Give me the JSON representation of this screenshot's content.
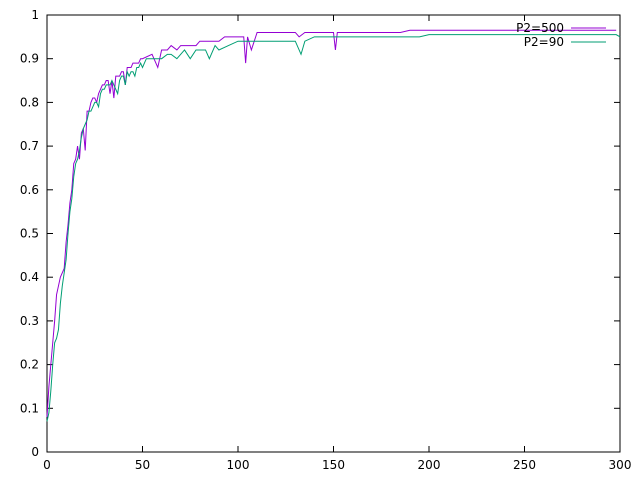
{
  "chart_data": {
    "type": "line",
    "title": "",
    "xlabel": "",
    "ylabel": "",
    "xlim": [
      0,
      300
    ],
    "ylim": [
      0,
      1
    ],
    "xticks": [
      0,
      50,
      100,
      150,
      200,
      250,
      300
    ],
    "yticks": [
      0,
      0.1,
      0.2,
      0.3,
      0.4,
      0.5,
      0.6,
      0.7,
      0.8,
      0.9,
      1
    ],
    "grid": false,
    "legend_position": "top-right",
    "series": [
      {
        "name": "P2=500",
        "color": "#9400d3",
        "x": [
          0,
          1,
          2,
          3,
          4,
          5,
          6,
          7,
          8,
          9,
          10,
          11,
          12,
          13,
          14,
          15,
          16,
          17,
          18,
          19,
          20,
          21,
          22,
          23,
          24,
          25,
          26,
          27,
          28,
          29,
          30,
          31,
          32,
          33,
          34,
          35,
          36,
          37,
          38,
          39,
          40,
          41,
          42,
          43,
          44,
          45,
          46,
          47,
          48,
          49,
          50,
          55,
          58,
          60,
          63,
          65,
          68,
          70,
          73,
          75,
          78,
          80,
          83,
          85,
          88,
          90,
          93,
          95,
          98,
          100,
          102,
          103,
          104,
          105,
          107,
          110,
          115,
          120,
          125,
          130,
          132,
          135,
          140,
          145,
          150,
          151,
          152,
          155,
          160,
          165,
          170,
          175,
          180,
          185,
          190,
          195,
          200,
          210,
          220,
          230,
          240,
          250,
          260,
          270,
          280,
          290,
          295,
          298
        ],
        "y": [
          0.08,
          0.15,
          0.2,
          0.25,
          0.3,
          0.36,
          0.38,
          0.4,
          0.41,
          0.42,
          0.48,
          0.52,
          0.57,
          0.6,
          0.66,
          0.67,
          0.7,
          0.67,
          0.73,
          0.74,
          0.69,
          0.78,
          0.78,
          0.8,
          0.81,
          0.81,
          0.8,
          0.82,
          0.83,
          0.84,
          0.84,
          0.85,
          0.85,
          0.82,
          0.85,
          0.81,
          0.86,
          0.86,
          0.86,
          0.87,
          0.87,
          0.84,
          0.88,
          0.88,
          0.88,
          0.89,
          0.89,
          0.89,
          0.89,
          0.9,
          0.9,
          0.91,
          0.88,
          0.92,
          0.92,
          0.93,
          0.92,
          0.93,
          0.93,
          0.93,
          0.93,
          0.94,
          0.94,
          0.94,
          0.94,
          0.94,
          0.95,
          0.95,
          0.95,
          0.95,
          0.95,
          0.95,
          0.89,
          0.95,
          0.92,
          0.96,
          0.96,
          0.96,
          0.96,
          0.96,
          0.95,
          0.96,
          0.96,
          0.96,
          0.96,
          0.92,
          0.96,
          0.96,
          0.96,
          0.96,
          0.96,
          0.96,
          0.96,
          0.96,
          0.965,
          0.965,
          0.965,
          0.965,
          0.965,
          0.965,
          0.965,
          0.965,
          0.965,
          0.965,
          0.965,
          0.965,
          0.965,
          0.965
        ]
      },
      {
        "name": "P2=90",
        "color": "#009e73",
        "x": [
          0,
          1,
          2,
          3,
          4,
          5,
          6,
          7,
          8,
          9,
          10,
          11,
          12,
          13,
          14,
          15,
          16,
          17,
          18,
          19,
          20,
          21,
          22,
          23,
          24,
          25,
          26,
          27,
          28,
          29,
          30,
          31,
          32,
          33,
          34,
          35,
          36,
          37,
          38,
          39,
          40,
          41,
          42,
          43,
          44,
          45,
          46,
          47,
          48,
          49,
          50,
          52,
          55,
          58,
          60,
          63,
          65,
          68,
          70,
          72,
          75,
          78,
          80,
          83,
          85,
          88,
          90,
          95,
          100,
          105,
          110,
          115,
          120,
          125,
          130,
          133,
          135,
          140,
          145,
          150,
          155,
          160,
          165,
          170,
          175,
          180,
          185,
          190,
          195,
          200,
          210,
          220,
          230,
          240,
          250,
          260,
          270,
          280,
          290,
          295,
          298,
          300
        ],
        "y": [
          0.07,
          0.09,
          0.14,
          0.2,
          0.25,
          0.26,
          0.28,
          0.34,
          0.38,
          0.41,
          0.44,
          0.5,
          0.55,
          0.58,
          0.63,
          0.66,
          0.67,
          0.69,
          0.72,
          0.74,
          0.75,
          0.76,
          0.78,
          0.78,
          0.79,
          0.8,
          0.8,
          0.79,
          0.82,
          0.83,
          0.83,
          0.84,
          0.84,
          0.84,
          0.85,
          0.84,
          0.83,
          0.82,
          0.85,
          0.86,
          0.86,
          0.84,
          0.87,
          0.86,
          0.87,
          0.87,
          0.86,
          0.88,
          0.88,
          0.89,
          0.88,
          0.9,
          0.9,
          0.9,
          0.9,
          0.91,
          0.91,
          0.9,
          0.91,
          0.92,
          0.9,
          0.92,
          0.92,
          0.92,
          0.9,
          0.93,
          0.92,
          0.93,
          0.94,
          0.94,
          0.94,
          0.94,
          0.94,
          0.94,
          0.94,
          0.91,
          0.94,
          0.95,
          0.95,
          0.95,
          0.95,
          0.95,
          0.95,
          0.95,
          0.95,
          0.95,
          0.95,
          0.95,
          0.95,
          0.955,
          0.955,
          0.955,
          0.955,
          0.955,
          0.955,
          0.955,
          0.955,
          0.955,
          0.955,
          0.955,
          0.955,
          0.95
        ]
      }
    ]
  }
}
